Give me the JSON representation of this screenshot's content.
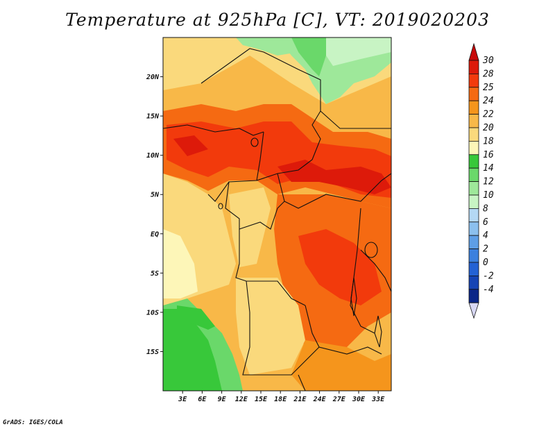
{
  "title": "Temperature at 925hPa [C], VT: 2019020203",
  "credit": "GrADS: IGES/COLA",
  "map": {
    "lon_range": [
      0,
      35
    ],
    "lat_range": [
      -20,
      25
    ],
    "lon_ticks": [
      {
        "lon": 3,
        "label": "3E"
      },
      {
        "lon": 6,
        "label": "6E"
      },
      {
        "lon": 9,
        "label": "9E"
      },
      {
        "lon": 12,
        "label": "12E"
      },
      {
        "lon": 15,
        "label": "15E"
      },
      {
        "lon": 18,
        "label": "18E"
      },
      {
        "lon": 21,
        "label": "21E"
      },
      {
        "lon": 24,
        "label": "24E"
      },
      {
        "lon": 27,
        "label": "27E"
      },
      {
        "lon": 30,
        "label": "30E"
      },
      {
        "lon": 33,
        "label": "33E"
      }
    ],
    "lat_ticks": [
      {
        "lat": 20,
        "label": "20N"
      },
      {
        "lat": 15,
        "label": "15N"
      },
      {
        "lat": 10,
        "label": "10N"
      },
      {
        "lat": 5,
        "label": "5N"
      },
      {
        "lat": 0,
        "label": "EQ"
      },
      {
        "lat": -5,
        "label": "5S"
      },
      {
        "lat": -10,
        "label": "10S"
      },
      {
        "lat": -15,
        "label": "15S"
      }
    ]
  },
  "colorbar": {
    "units": "C",
    "levels": [
      {
        "label": "30",
        "color": "#dd1a0a"
      },
      {
        "label": "28",
        "color": "#f23a0c"
      },
      {
        "label": "25",
        "color": "#f56a12"
      },
      {
        "label": "24",
        "color": "#f5951c"
      },
      {
        "label": "22",
        "color": "#f8b848"
      },
      {
        "label": "20",
        "color": "#fad97c"
      },
      {
        "label": "18",
        "color": "#fdf6b8"
      },
      {
        "label": "16",
        "color": "#38c83a"
      },
      {
        "label": "14",
        "color": "#6ad86a"
      },
      {
        "label": "12",
        "color": "#9ee89a"
      },
      {
        "label": "10",
        "color": "#c8f4c4"
      },
      {
        "label": "8",
        "color": "#b4d8f4"
      },
      {
        "label": "6",
        "color": "#8cc0ee"
      },
      {
        "label": "4",
        "color": "#5e9ee6"
      },
      {
        "label": "2",
        "color": "#3c80de"
      },
      {
        "label": "0",
        "color": "#2462d4"
      },
      {
        "label": "-2",
        "color": "#1644b4"
      },
      {
        "label": "-4",
        "color": "#0a2688"
      }
    ],
    "top_color": "#c80a0a",
    "bottom_color": "#d8d8f4"
  }
}
